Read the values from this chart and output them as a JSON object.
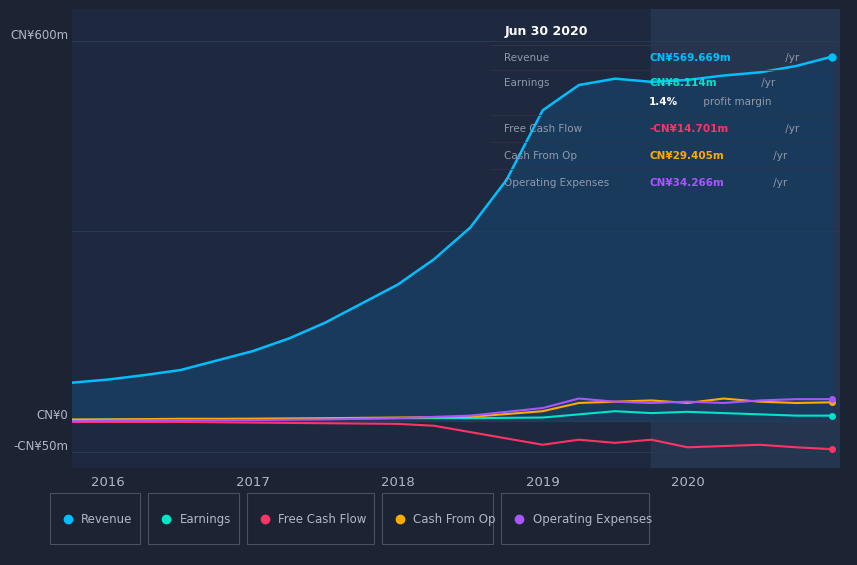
{
  "bg_color": "#1c2333",
  "chart_bg": "#1e2940",
  "panel_bg": "#0a0a0a",
  "ylabel_600": "CN¥600m",
  "ylabel_0": "CN¥0",
  "ylabel_neg50": "-CN¥50m",
  "xticks": [
    2016,
    2017,
    2018,
    2019,
    2020
  ],
  "ylim": [
    -75,
    650
  ],
  "revenue_color": "#00bfff",
  "revenue_fill": "#1a3a5c",
  "earnings_color": "#00e5c8",
  "fcf_color": "#ff3366",
  "cashfromop_color": "#ffaa00",
  "opex_color": "#aa55ff",
  "highlight_color": "#253550",
  "grid_color": "#2a3a52",
  "text_color": "#9099aa",
  "axis_text_color": "#b0b8c8",
  "revenue_data_x": [
    2015.75,
    2016.0,
    2016.25,
    2016.5,
    2016.75,
    2017.0,
    2017.25,
    2017.5,
    2017.75,
    2018.0,
    2018.25,
    2018.5,
    2018.75,
    2019.0,
    2019.25,
    2019.5,
    2019.75,
    2020.0,
    2020.25,
    2020.5,
    2020.75,
    2021.0
  ],
  "revenue_data_y": [
    60,
    65,
    72,
    80,
    95,
    110,
    130,
    155,
    185,
    215,
    255,
    305,
    380,
    490,
    530,
    540,
    535,
    538,
    545,
    550,
    560,
    575
  ],
  "earnings_data_x": [
    2015.75,
    2016.0,
    2016.5,
    2017.0,
    2017.5,
    2018.0,
    2018.5,
    2019.0,
    2019.25,
    2019.5,
    2019.75,
    2020.0,
    2020.25,
    2020.5,
    2020.75,
    2021.0
  ],
  "earnings_data_y": [
    1,
    2,
    2,
    3,
    3,
    4,
    4,
    5,
    10,
    15,
    12,
    14,
    12,
    10,
    8,
    8
  ],
  "fcf_data_x": [
    2015.75,
    2016.0,
    2016.5,
    2017.0,
    2017.5,
    2018.0,
    2018.25,
    2018.5,
    2018.75,
    2019.0,
    2019.25,
    2019.5,
    2019.75,
    2020.0,
    2020.25,
    2020.5,
    2020.75,
    2021.0
  ],
  "fcf_data_y": [
    -2,
    -2,
    -2,
    -3,
    -4,
    -5,
    -8,
    -18,
    -28,
    -38,
    -30,
    -35,
    -30,
    -42,
    -40,
    -38,
    -42,
    -45
  ],
  "cashfromop_data_x": [
    2015.75,
    2016.0,
    2016.5,
    2017.0,
    2017.5,
    2018.0,
    2018.5,
    2019.0,
    2019.25,
    2019.5,
    2019.75,
    2020.0,
    2020.25,
    2020.5,
    2020.75,
    2021.0
  ],
  "cashfromop_data_y": [
    2,
    2,
    3,
    3,
    4,
    5,
    6,
    15,
    28,
    30,
    32,
    28,
    35,
    30,
    28,
    29
  ],
  "opex_data_x": [
    2015.75,
    2016.0,
    2016.5,
    2017.0,
    2017.5,
    2018.0,
    2018.5,
    2019.0,
    2019.25,
    2019.5,
    2019.75,
    2020.0,
    2020.25,
    2020.5,
    2020.75,
    2021.0
  ],
  "opex_data_y": [
    -1,
    0,
    1,
    1,
    2,
    4,
    8,
    20,
    35,
    30,
    28,
    30,
    28,
    32,
    34,
    34
  ],
  "panel_title": "Jun 30 2020",
  "panel_rows": [
    {
      "label": "Revenue",
      "value": "CN¥569.669m",
      "unit": " /yr",
      "value_color": "#00bfff"
    },
    {
      "label": "Earnings",
      "value": "CN¥8.114m",
      "unit": " /yr",
      "value_color": "#00e5c8"
    },
    {
      "label": "",
      "value": "1.4%",
      "unit": " profit margin",
      "value_color": "#ffffff"
    },
    {
      "label": "Free Cash Flow",
      "value": "-CN¥14.701m",
      "unit": " /yr",
      "value_color": "#ff3366"
    },
    {
      "label": "Cash From Op",
      "value": "CN¥29.405m",
      "unit": " /yr",
      "value_color": "#ffaa00"
    },
    {
      "label": "Operating Expenses",
      "value": "CN¥34.266m",
      "unit": " /yr",
      "value_color": "#aa55ff"
    }
  ],
  "legend_items": [
    {
      "label": "Revenue",
      "color": "#00bfff"
    },
    {
      "label": "Earnings",
      "color": "#00e5c8"
    },
    {
      "label": "Free Cash Flow",
      "color": "#ff3366"
    },
    {
      "label": "Cash From Op",
      "color": "#ffaa00"
    },
    {
      "label": "Operating Expenses",
      "color": "#aa55ff"
    }
  ],
  "highlight_start": 2019.75,
  "highlight_end": 2021.05,
  "xlim_left": 2015.75,
  "xlim_right": 2021.05
}
